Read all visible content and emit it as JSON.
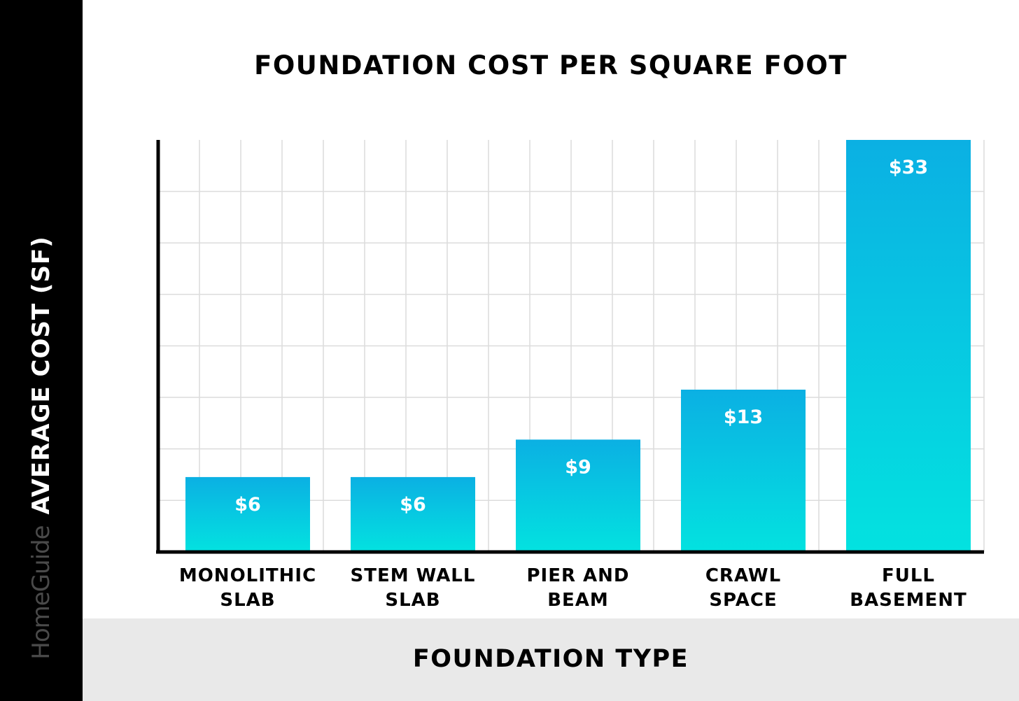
{
  "brand": "HomeGuide",
  "chart_data": {
    "type": "bar",
    "title": "FOUNDATION COST PER SQUARE FOOT",
    "xlabel": "FOUNDATION TYPE",
    "ylabel": "AVERAGE COST (SF)",
    "categories": [
      [
        "MONOLITHIC",
        "SLAB"
      ],
      [
        "STEM WALL",
        "SLAB"
      ],
      [
        "PIER AND",
        "BEAM"
      ],
      [
        "CRAWL",
        "SPACE"
      ],
      [
        "FULL",
        "BASEMENT"
      ]
    ],
    "values": [
      6,
      6,
      9,
      13,
      33
    ],
    "value_labels": [
      "$6",
      "$6",
      "$9",
      "$13",
      "$33"
    ],
    "ylim": [
      0,
      33
    ],
    "grid": true,
    "colors": {
      "bar_top": "#0bb0e3",
      "bar_bottom": "#03e2e0",
      "grid": "#dcdcdc",
      "axis": "#000000"
    }
  }
}
